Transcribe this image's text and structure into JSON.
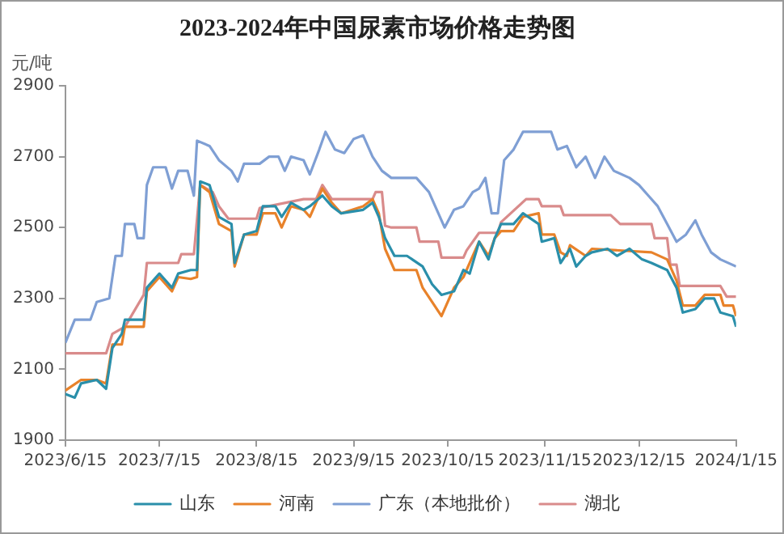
{
  "chart_data": {
    "type": "line",
    "title": "2023-2024年中国尿素市场价格走势图",
    "ylabel": "元/吨",
    "xlim": [
      "2023-06-15",
      "2024-01-15"
    ],
    "xticks": [
      {
        "value": "2023-06-15",
        "label": "2023/6/15"
      },
      {
        "value": "2023-07-15",
        "label": "2023/7/15"
      },
      {
        "value": "2023-08-15",
        "label": "2023/8/15"
      },
      {
        "value": "2023-09-15",
        "label": "2023/9/15"
      },
      {
        "value": "2023-10-15",
        "label": "2023/10/15"
      },
      {
        "value": "2023-11-15",
        "label": "2023/11/15"
      },
      {
        "value": "2023-12-15",
        "label": "2023/12/15"
      },
      {
        "value": "2024-01-15",
        "label": "2024/1/15"
      }
    ],
    "ylim": [
      1900,
      2900
    ],
    "yticks": [
      1900,
      2100,
      2300,
      2500,
      2700,
      2900
    ],
    "grid": false,
    "legend": "bottom",
    "marker": "none",
    "line_style": "solid",
    "series": [
      {
        "name": "山东",
        "color": "#2a8faa",
        "x": [
          "2023-06-15",
          "2023-06-18",
          "2023-06-20",
          "2023-06-25",
          "2023-06-28",
          "2023-06-30",
          "2023-07-03",
          "2023-07-04",
          "2023-07-10",
          "2023-07-11",
          "2023-07-15",
          "2023-07-19",
          "2023-07-21",
          "2023-07-25",
          "2023-07-27",
          "2023-07-28",
          "2023-07-31",
          "2023-08-03",
          "2023-08-07",
          "2023-08-08",
          "2023-08-11",
          "2023-08-15",
          "2023-08-17",
          "2023-08-21",
          "2023-08-23",
          "2023-08-26",
          "2023-08-30",
          "2023-09-01",
          "2023-09-05",
          "2023-09-08",
          "2023-09-11",
          "2023-09-18",
          "2023-09-21",
          "2023-09-23",
          "2023-09-25",
          "2023-09-28",
          "2023-10-02",
          "2023-10-07",
          "2023-10-10",
          "2023-10-13",
          "2023-10-17",
          "2023-10-20",
          "2023-10-22",
          "2023-10-25",
          "2023-10-28",
          "2023-10-30",
          "2023-11-01",
          "2023-11-05",
          "2023-11-08",
          "2023-11-13",
          "2023-11-14",
          "2023-11-18",
          "2023-11-20",
          "2023-11-23",
          "2023-11-25",
          "2023-11-28",
          "2023-11-30",
          "2023-12-05",
          "2023-12-08",
          "2023-12-12",
          "2023-12-16",
          "2023-12-19",
          "2023-12-24",
          "2023-12-27",
          "2023-12-29",
          "2024-01-02",
          "2024-01-05",
          "2024-01-08",
          "2024-01-10",
          "2024-01-14",
          "2024-01-15"
        ],
        "values": [
          2030,
          2020,
          2060,
          2070,
          2045,
          2160,
          2200,
          2240,
          2240,
          2330,
          2370,
          2330,
          2370,
          2380,
          2380,
          2630,
          2620,
          2530,
          2510,
          2400,
          2480,
          2490,
          2560,
          2560,
          2530,
          2570,
          2550,
          2560,
          2590,
          2560,
          2540,
          2550,
          2570,
          2530,
          2470,
          2420,
          2420,
          2390,
          2340,
          2310,
          2320,
          2380,
          2370,
          2460,
          2410,
          2470,
          2510,
          2510,
          2540,
          2510,
          2460,
          2470,
          2400,
          2440,
          2390,
          2420,
          2430,
          2440,
          2420,
          2440,
          2410,
          2400,
          2380,
          2330,
          2260,
          2270,
          2300,
          2300,
          2260,
          2250,
          2220
        ]
      },
      {
        "name": "河南",
        "color": "#e8822a",
        "x": [
          "2023-06-15",
          "2023-06-20",
          "2023-06-25",
          "2023-06-28",
          "2023-06-30",
          "2023-07-03",
          "2023-07-04",
          "2023-07-10",
          "2023-07-11",
          "2023-07-15",
          "2023-07-19",
          "2023-07-21",
          "2023-07-25",
          "2023-07-27",
          "2023-07-28",
          "2023-07-31",
          "2023-08-03",
          "2023-08-07",
          "2023-08-08",
          "2023-08-11",
          "2023-08-15",
          "2023-08-17",
          "2023-08-21",
          "2023-08-23",
          "2023-08-26",
          "2023-08-30",
          "2023-09-01",
          "2023-09-05",
          "2023-09-08",
          "2023-09-11",
          "2023-09-18",
          "2023-09-21",
          "2023-09-23",
          "2023-09-25",
          "2023-09-28",
          "2023-10-02",
          "2023-10-05",
          "2023-10-07",
          "2023-10-10",
          "2023-10-13",
          "2023-10-14",
          "2023-10-17",
          "2023-10-20",
          "2023-10-22",
          "2023-10-25",
          "2023-10-28",
          "2023-10-30",
          "2023-11-01",
          "2023-11-05",
          "2023-11-08",
          "2023-11-13",
          "2023-11-14",
          "2023-11-18",
          "2023-11-20",
          "2023-11-22",
          "2023-11-23",
          "2023-11-28",
          "2023-11-30",
          "2023-12-19",
          "2023-12-24",
          "2023-12-27",
          "2023-12-29",
          "2024-01-02",
          "2024-01-05",
          "2024-01-10",
          "2024-01-11",
          "2024-01-14",
          "2024-01-15"
        ],
        "values": [
          2040,
          2070,
          2070,
          2060,
          2170,
          2170,
          2220,
          2220,
          2320,
          2360,
          2320,
          2360,
          2355,
          2360,
          2620,
          2600,
          2510,
          2490,
          2390,
          2480,
          2480,
          2540,
          2540,
          2500,
          2560,
          2550,
          2530,
          2610,
          2570,
          2540,
          2560,
          2580,
          2540,
          2440,
          2380,
          2380,
          2380,
          2330,
          2290,
          2250,
          2270,
          2330,
          2360,
          2400,
          2460,
          2420,
          2470,
          2490,
          2490,
          2530,
          2540,
          2480,
          2480,
          2430,
          2420,
          2450,
          2420,
          2440,
          2430,
          2410,
          2350,
          2280,
          2280,
          2310,
          2310,
          2280,
          2280,
          2250
        ]
      },
      {
        "name": "广东（本地批价）",
        "color": "#7f9fd4",
        "x": [
          "2023-06-15",
          "2023-06-18",
          "2023-06-23",
          "2023-06-25",
          "2023-06-29",
          "2023-07-01",
          "2023-07-03",
          "2023-07-04",
          "2023-07-07",
          "2023-07-08",
          "2023-07-10",
          "2023-07-11",
          "2023-07-13",
          "2023-07-17",
          "2023-07-19",
          "2023-07-21",
          "2023-07-24",
          "2023-07-26",
          "2023-07-27",
          "2023-07-31",
          "2023-08-03",
          "2023-08-07",
          "2023-08-09",
          "2023-08-11",
          "2023-08-16",
          "2023-08-19",
          "2023-08-22",
          "2023-08-24",
          "2023-08-26",
          "2023-08-30",
          "2023-09-01",
          "2023-09-04",
          "2023-09-06",
          "2023-09-09",
          "2023-09-12",
          "2023-09-15",
          "2023-09-18",
          "2023-09-21",
          "2023-09-24",
          "2023-09-27",
          "2023-10-05",
          "2023-10-09",
          "2023-10-12",
          "2023-10-14",
          "2023-10-17",
          "2023-10-20",
          "2023-10-23",
          "2023-10-25",
          "2023-10-27",
          "2023-10-29",
          "2023-10-31",
          "2023-11-02",
          "2023-11-05",
          "2023-11-08",
          "2023-11-17",
          "2023-11-19",
          "2023-11-22",
          "2023-11-25",
          "2023-11-28",
          "2023-12-01",
          "2023-12-04",
          "2023-12-07",
          "2023-12-12",
          "2023-12-15",
          "2023-12-18",
          "2023-12-21",
          "2023-12-24",
          "2023-12-27",
          "2023-12-30",
          "2024-01-02",
          "2024-01-04",
          "2024-01-07",
          "2024-01-10",
          "2024-01-15"
        ],
        "values": [
          2175,
          2240,
          2240,
          2290,
          2300,
          2420,
          2420,
          2510,
          2510,
          2470,
          2470,
          2620,
          2670,
          2670,
          2610,
          2660,
          2660,
          2590,
          2745,
          2730,
          2690,
          2660,
          2630,
          2680,
          2680,
          2700,
          2700,
          2660,
          2700,
          2690,
          2650,
          2720,
          2770,
          2720,
          2710,
          2750,
          2760,
          2700,
          2660,
          2640,
          2640,
          2600,
          2540,
          2500,
          2550,
          2560,
          2600,
          2610,
          2640,
          2540,
          2540,
          2690,
          2720,
          2770,
          2770,
          2720,
          2730,
          2670,
          2700,
          2640,
          2700,
          2660,
          2640,
          2620,
          2590,
          2560,
          2510,
          2460,
          2480,
          2520,
          2480,
          2430,
          2410,
          2390
        ]
      },
      {
        "name": "湖北",
        "color": "#d98b8b",
        "x": [
          "2023-06-15",
          "2023-06-28",
          "2023-06-30",
          "2023-07-04",
          "2023-07-10",
          "2023-07-11",
          "2023-07-21",
          "2023-07-22",
          "2023-07-26",
          "2023-07-28",
          "2023-08-01",
          "2023-08-03",
          "2023-08-06",
          "2023-08-15",
          "2023-08-16",
          "2023-08-30",
          "2023-09-03",
          "2023-09-05",
          "2023-09-08",
          "2023-09-21",
          "2023-09-22",
          "2023-09-24",
          "2023-09-25",
          "2023-09-27",
          "2023-10-05",
          "2023-10-06",
          "2023-10-12",
          "2023-10-13",
          "2023-10-20",
          "2023-10-21",
          "2023-10-25",
          "2023-10-31",
          "2023-11-01",
          "2023-11-09",
          "2023-11-13",
          "2023-11-14",
          "2023-11-20",
          "2023-11-21",
          "2023-12-06",
          "2023-12-09",
          "2023-12-19",
          "2023-12-20",
          "2023-12-24",
          "2023-12-25",
          "2023-12-27",
          "2023-12-28",
          "2024-01-10",
          "2024-01-12",
          "2024-01-15"
        ],
        "values": [
          2145,
          2145,
          2200,
          2220,
          2310,
          2400,
          2400,
          2425,
          2425,
          2620,
          2600,
          2560,
          2525,
          2525,
          2555,
          2580,
          2580,
          2620,
          2580,
          2580,
          2600,
          2600,
          2505,
          2500,
          2500,
          2460,
          2460,
          2415,
          2415,
          2435,
          2485,
          2485,
          2515,
          2580,
          2580,
          2560,
          2560,
          2535,
          2535,
          2510,
          2510,
          2470,
          2470,
          2395,
          2395,
          2335,
          2335,
          2305,
          2305
        ]
      }
    ]
  }
}
